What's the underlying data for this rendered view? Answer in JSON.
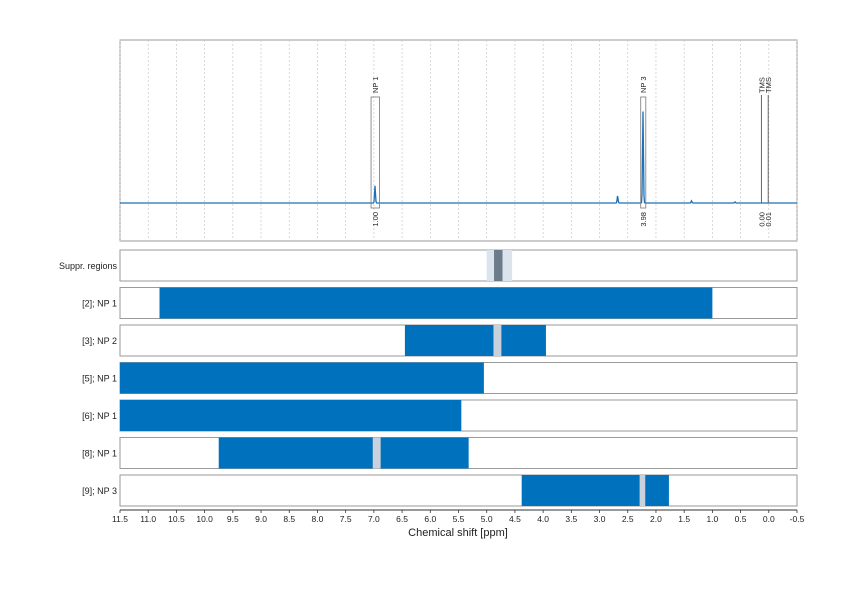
{
  "chart_data": {
    "type": "nmr-spectrum-with-region-bars",
    "xlabel": "Chemical shift [ppm]",
    "xlim": [
      11.5,
      -0.5
    ],
    "x_ticks": [
      "11.5",
      "11.0",
      "10.5",
      "10.0",
      "9.5",
      "9.0",
      "8.5",
      "8.0",
      "7.5",
      "7.0",
      "6.5",
      "6.0",
      "5.5",
      "5.0",
      "4.5",
      "4.0",
      "3.5",
      "3.0",
      "2.5",
      "2.0",
      "1.5",
      "1.0",
      "0.5",
      "0.0",
      "-0.5"
    ],
    "grid": true,
    "peaks": [
      {
        "label": "NP 1",
        "ppm": 6.98,
        "integral": "1.00",
        "height": 0.12,
        "box_lo": 6.9,
        "box_hi": 7.05
      },
      {
        "label": "NP 3",
        "ppm": 2.23,
        "integral": "3.98",
        "height": 0.64,
        "box_lo": 2.18,
        "box_hi": 2.27
      },
      {
        "label": "TMS",
        "ppm": 0.13,
        "integral": "0.00",
        "height": 0.7,
        "box_lo": 0.13,
        "box_hi": 0.13
      },
      {
        "label": "TMS",
        "ppm": 0.01,
        "integral": "0.01",
        "height": 0.7,
        "box_lo": 0.01,
        "box_hi": 0.01
      }
    ],
    "minor_peaks": [
      {
        "ppm": 2.68,
        "height": 0.05
      },
      {
        "ppm": 1.37,
        "height": 0.015
      },
      {
        "ppm": 0.6,
        "height": 0.008
      }
    ],
    "suppression_regions": {
      "label": "Suppr. regions",
      "outer": [
        5.0,
        4.55
      ],
      "inner": [
        4.87,
        4.72
      ]
    },
    "rows": [
      {
        "label": "[2]; NP 1",
        "start": 10.8,
        "end": 1.0,
        "gaps": []
      },
      {
        "label": "[3]; NP 2",
        "start": 6.45,
        "end": 3.95,
        "gaps": [
          [
            4.88,
            4.74
          ]
        ]
      },
      {
        "label": "[5]; NP 1",
        "start": 11.5,
        "end": 5.05,
        "gaps": []
      },
      {
        "label": "[6]; NP 1",
        "start": 11.5,
        "end": 5.45,
        "gaps": []
      },
      {
        "label": "[8]; NP 1",
        "start": 9.75,
        "end": 5.32,
        "gaps": [
          [
            7.02,
            6.88
          ]
        ]
      },
      {
        "label": "[9]; NP 3",
        "start": 4.38,
        "end": 1.77,
        "gaps": [
          [
            2.29,
            2.19
          ]
        ]
      }
    ],
    "colors": {
      "spectrum": "#1f6fb5",
      "bar": "#0072bd",
      "gap": "#c9d2dc",
      "suppr_outer": "#dbe3ec",
      "suppr_inner": "#6b7b89",
      "integral_text": "#d62728",
      "frame": "#9a9a9a"
    }
  }
}
